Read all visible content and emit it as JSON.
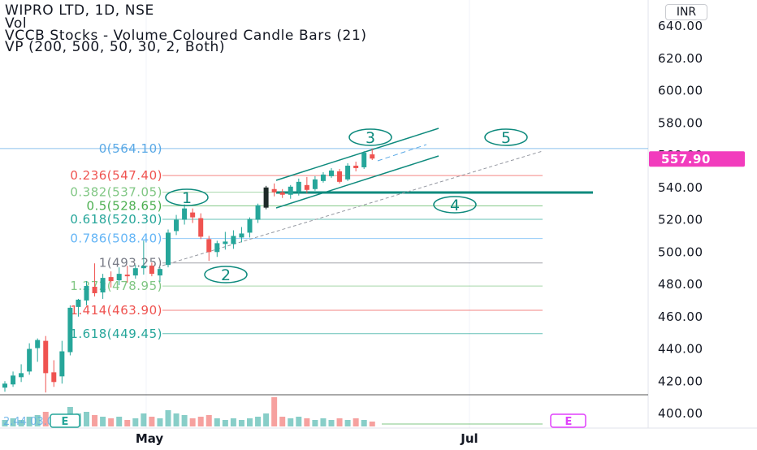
{
  "header": {
    "symbol_line": "WIPRO LTD, 1D, NSE",
    "vol_label": "Vol",
    "indicator_1": "VCCB Stocks - Volume Coloured Candle Bars (21)",
    "indicator_2": "VP (200, 500, 50, 30, 2, Both)"
  },
  "currency_button": "INR",
  "price_badge": "557.90",
  "colors": {
    "up": "#26a69a",
    "down": "#ef5350",
    "neutral": "#6b6f7a",
    "trend": "#0e8a7d",
    "badge_bg": "#f23cbd"
  },
  "chart_data": {
    "type": "candlestick",
    "symbol": "WIPRO LTD",
    "interval": "1D",
    "exchange": "NSE",
    "y_axis": {
      "ticks": [
        640,
        620,
        600,
        580,
        560,
        540,
        520,
        500,
        480,
        460,
        440,
        420,
        400
      ],
      "labels": [
        "640.00",
        "620.00",
        "600.00",
        "580.00",
        "560.00",
        "540.00",
        "520.00",
        "500.00",
        "480.00",
        "460.00",
        "440.00",
        "420.00",
        "400.00"
      ],
      "ylim": [
        396.5,
        654.0
      ],
      "last_price": 557.9
    },
    "x_axis": {
      "labels": [
        "May",
        "Jul"
      ]
    },
    "fib_levels": [
      {
        "label": "0(564.10)",
        "value": 564.1,
        "color": "#5aa9e6"
      },
      {
        "label": "0.236(547.40)",
        "value": 547.4,
        "color": "#ef5350"
      },
      {
        "label": "0.382(537.05)",
        "value": 537.05,
        "color": "#81c784"
      },
      {
        "label": "0.5(528.65)",
        "value": 528.65,
        "color": "#4caf50"
      },
      {
        "label": "0.618(520.30)",
        "value": 520.3,
        "color": "#26a69a"
      },
      {
        "label": "0.786(508.40)",
        "value": 508.4,
        "color": "#64b5f6"
      },
      {
        "label": "1(493.25)",
        "value": 493.25,
        "color": "#787b86"
      },
      {
        "label": "1.272(478.95)",
        "value": 478.95,
        "color": "#81c784"
      },
      {
        "label": "1.414(463.90)",
        "value": 463.9,
        "color": "#ef5350"
      },
      {
        "label": "1.618(449.45)",
        "value": 449.45,
        "color": "#26a69a"
      }
    ],
    "wave_labels": [
      "1",
      "2",
      "3",
      "4",
      "5"
    ],
    "volume_labels": {
      "badge_left": "E",
      "badge_right": "E",
      "text": "2.44 03.05"
    },
    "candles": [
      {
        "o": 416.0,
        "h": 420.0,
        "l": 413.5,
        "c": 418.5
      },
      {
        "o": 418.0,
        "h": 426.0,
        "l": 416.5,
        "c": 423.5
      },
      {
        "o": 422.5,
        "h": 430.5,
        "l": 419.5,
        "c": 425.0
      },
      {
        "o": 426.0,
        "h": 443.5,
        "l": 424.0,
        "c": 440.0
      },
      {
        "o": 440.5,
        "h": 446.5,
        "l": 432.0,
        "c": 445.5
      },
      {
        "o": 445.0,
        "h": 448.0,
        "l": 413.0,
        "c": 425.0
      },
      {
        "o": 425.5,
        "h": 433.0,
        "l": 416.5,
        "c": 419.5
      },
      {
        "o": 423.0,
        "h": 445.0,
        "l": 418.5,
        "c": 438.5
      },
      {
        "o": 438.0,
        "h": 467.0,
        "l": 436.0,
        "c": 465.5
      },
      {
        "o": 466.0,
        "h": 471.0,
        "l": 460.0,
        "c": 470.5
      },
      {
        "o": 470.0,
        "h": 482.0,
        "l": 467.0,
        "c": 479.0
      },
      {
        "o": 478.5,
        "h": 493.0,
        "l": 472.5,
        "c": 474.5
      },
      {
        "o": 475.0,
        "h": 486.5,
        "l": 471.0,
        "c": 484.0
      },
      {
        "o": 484.5,
        "h": 488.0,
        "l": 478.0,
        "c": 482.0
      },
      {
        "o": 482.5,
        "h": 490.5,
        "l": 479.5,
        "c": 486.5
      },
      {
        "o": 486.0,
        "h": 491.5,
        "l": 481.0,
        "c": 485.0
      },
      {
        "o": 485.5,
        "h": 492.0,
        "l": 483.5,
        "c": 490.0
      },
      {
        "o": 490.0,
        "h": 507.0,
        "l": 486.0,
        "c": 491.5
      },
      {
        "o": 491.5,
        "h": 493.5,
        "l": 485.0,
        "c": 486.5
      },
      {
        "o": 485.5,
        "h": 490.5,
        "l": 481.5,
        "c": 489.5
      },
      {
        "o": 492.0,
        "h": 514.0,
        "l": 490.5,
        "c": 512.0
      },
      {
        "o": 513.0,
        "h": 523.0,
        "l": 510.5,
        "c": 520.0
      },
      {
        "o": 520.0,
        "h": 529.5,
        "l": 517.0,
        "c": 527.0
      },
      {
        "o": 524.5,
        "h": 527.0,
        "l": 518.0,
        "c": 521.5
      },
      {
        "o": 521.0,
        "h": 524.0,
        "l": 508.0,
        "c": 509.5
      },
      {
        "o": 508.0,
        "h": 510.0,
        "l": 494.5,
        "c": 500.0
      },
      {
        "o": 500.0,
        "h": 507.0,
        "l": 497.0,
        "c": 505.5
      },
      {
        "o": 505.0,
        "h": 512.5,
        "l": 501.5,
        "c": 506.5
      },
      {
        "o": 505.0,
        "h": 513.5,
        "l": 502.0,
        "c": 510.0
      },
      {
        "o": 509.0,
        "h": 515.5,
        "l": 506.0,
        "c": 511.5
      },
      {
        "o": 512.0,
        "h": 521.5,
        "l": 509.0,
        "c": 520.5
      },
      {
        "o": 520.0,
        "h": 530.0,
        "l": 518.0,
        "c": 529.0
      },
      {
        "o": 527.5,
        "h": 541.0,
        "l": 526.5,
        "c": 540.0
      },
      {
        "o": 539.0,
        "h": 542.5,
        "l": 534.5,
        "c": 537.0
      },
      {
        "o": 537.0,
        "h": 539.0,
        "l": 533.5,
        "c": 535.5
      },
      {
        "o": 535.5,
        "h": 541.5,
        "l": 533.0,
        "c": 540.5
      },
      {
        "o": 537.5,
        "h": 545.5,
        "l": 535.0,
        "c": 543.5
      },
      {
        "o": 541.5,
        "h": 546.5,
        "l": 536.5,
        "c": 538.5
      },
      {
        "o": 539.0,
        "h": 547.0,
        "l": 538.0,
        "c": 545.0
      },
      {
        "o": 544.0,
        "h": 549.5,
        "l": 543.0,
        "c": 548.0
      },
      {
        "o": 547.0,
        "h": 552.0,
        "l": 546.0,
        "c": 550.5
      },
      {
        "o": 550.0,
        "h": 551.5,
        "l": 542.5,
        "c": 543.5
      },
      {
        "o": 545.0,
        "h": 555.0,
        "l": 544.0,
        "c": 553.5
      },
      {
        "o": 553.5,
        "h": 556.0,
        "l": 550.0,
        "c": 552.0
      },
      {
        "o": 552.5,
        "h": 562.5,
        "l": 551.5,
        "c": 561.5
      },
      {
        "o": 560.5,
        "h": 564.1,
        "l": 557.0,
        "c": 557.9
      }
    ],
    "volume": [
      4,
      5,
      4,
      6,
      7,
      9,
      5,
      6,
      12,
      8,
      9,
      7,
      6,
      5,
      6,
      4,
      5,
      8,
      6,
      5,
      10,
      8,
      7,
      5,
      6,
      7,
      5,
      4,
      5,
      4,
      5,
      6,
      8,
      18,
      6,
      5,
      6,
      5,
      4,
      5,
      4,
      5,
      4,
      5,
      4,
      3
    ]
  }
}
